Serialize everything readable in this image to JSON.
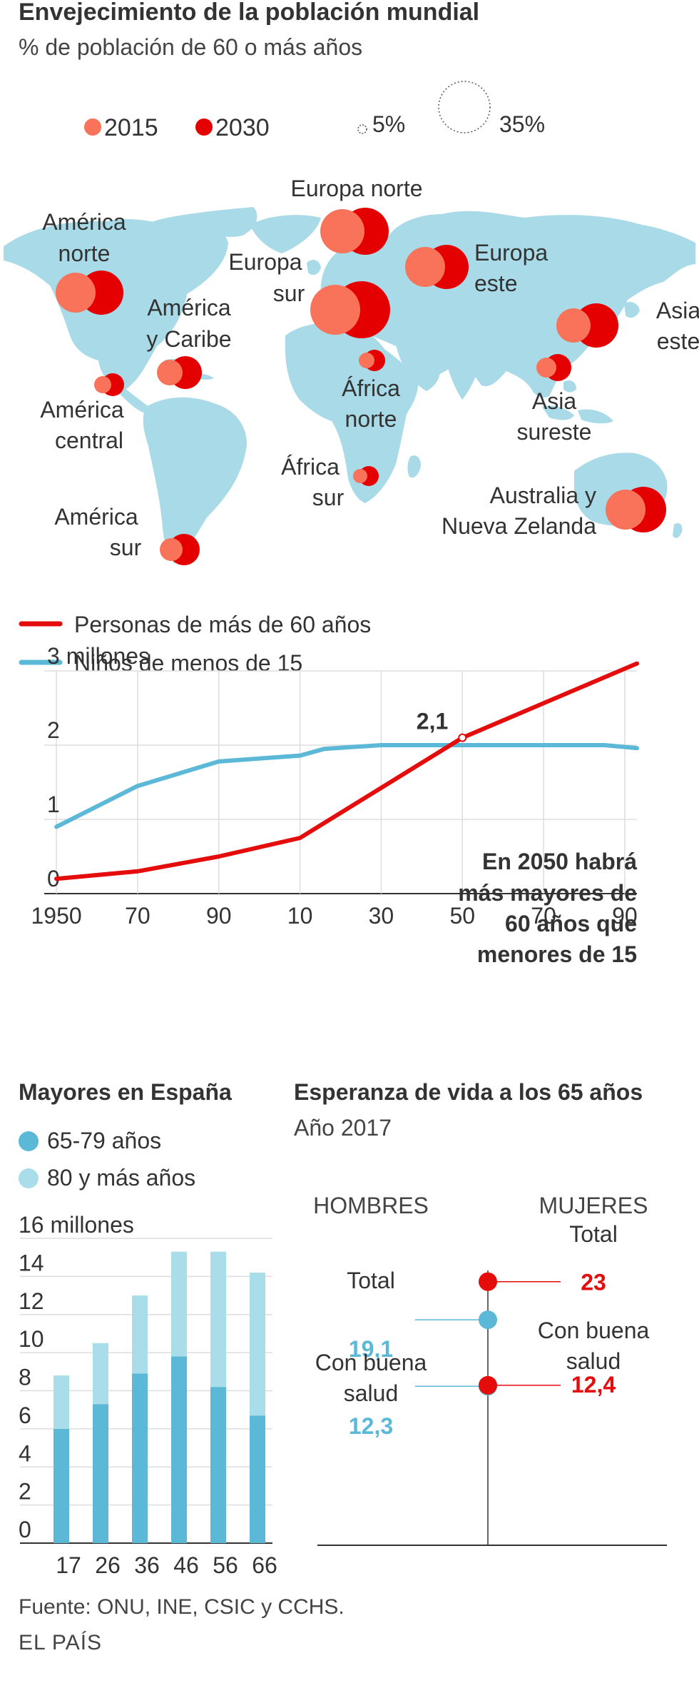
{
  "header": {
    "title": "Envejecimiento de la población mundial",
    "subtitle": "% de población de 60 o más años"
  },
  "colors": {
    "c2015": "#f87359",
    "c2030": "#e40000",
    "land": "#a8dae8",
    "red": "#e50c0c",
    "blue": "#5bb8d6",
    "blue_light": "#a9dde9",
    "grid": "#dddddd",
    "axis": "#333333"
  },
  "chart_data": [
    {
      "type": "bubble-map",
      "title": "Envejecimiento de la población mundial",
      "subtitle": "% de población de 60 o más años",
      "legend": {
        "series": [
          "2015",
          "2030"
        ],
        "size_min_label": "5%",
        "size_max_label": "35%",
        "size_min": 5,
        "size_max": 35
      },
      "regions": [
        {
          "name_lines": [
            "América",
            "norte"
          ],
          "v2015": 21,
          "v2030": 27
        },
        {
          "name_lines": [
            "América",
            "y Caribe"
          ],
          "v2015": 11,
          "v2030": 17
        },
        {
          "name_lines": [
            "América",
            "central"
          ],
          "v2015": 8,
          "v2030": 13
        },
        {
          "name_lines": [
            "América",
            "sur"
          ],
          "v2015": 11,
          "v2030": 17
        },
        {
          "name_lines": [
            "Europa norte"
          ],
          "v2015": 24,
          "v2030": 28
        },
        {
          "name_lines": [
            "Europa",
            "sur"
          ],
          "v2015": 27,
          "v2030": 34
        },
        {
          "name_lines": [
            "Europa",
            "este"
          ],
          "v2015": 23,
          "v2030": 28
        },
        {
          "name_lines": [
            "África",
            "norte"
          ],
          "v2015": 7,
          "v2030": 11
        },
        {
          "name_lines": [
            "África",
            "sur"
          ],
          "v2015": 7,
          "v2030": 10
        },
        {
          "name_lines": [
            "Asia",
            "este"
          ],
          "v2015": 18,
          "v2030": 27
        },
        {
          "name_lines": [
            "Asia",
            "sureste"
          ],
          "v2015": 10,
          "v2030": 15
        },
        {
          "name_lines": [
            "Australia y",
            "Nueva Zelanda"
          ],
          "v2015": 20,
          "v2030": 25
        }
      ]
    },
    {
      "type": "line",
      "legend": [
        "Personas de más de 60 años",
        "Niños de menos de 15"
      ],
      "x_tick_labels": [
        "1950",
        "70",
        "90",
        "10",
        "30",
        "50",
        "70",
        "90"
      ],
      "x_ticks": [
        1950,
        1970,
        1990,
        2010,
        2030,
        2050,
        2070,
        2090
      ],
      "xlim": [
        1947,
        2093
      ],
      "ylim": [
        0,
        3
      ],
      "y_tick_labels": [
        "0",
        "1",
        "2",
        "3 millones"
      ],
      "y_ticks": [
        0,
        1,
        2,
        3
      ],
      "series": [
        {
          "name": "Personas de más de 60 años",
          "x": [
            1950,
            1970,
            1990,
            2010,
            2050,
            2093
          ],
          "values": [
            0.2,
            0.3,
            0.5,
            0.75,
            2.1,
            3.1
          ]
        },
        {
          "name": "Niños de menos de 15",
          "x": [
            1950,
            1970,
            1990,
            2010,
            2016,
            2030,
            2050,
            2085,
            2093
          ],
          "values": [
            0.9,
            1.45,
            1.78,
            1.86,
            1.95,
            2.0,
            2.0,
            2.0,
            1.96
          ]
        }
      ],
      "annotations": {
        "point_label": "2,1",
        "point_x": 2050,
        "point_y": 2.1,
        "text_lines": [
          "En 2050 habrá",
          "más mayores de",
          "60 años que",
          "menores de 15"
        ]
      }
    },
    {
      "type": "bar",
      "stacked": true,
      "title": "Mayores en España",
      "legend": [
        "65-79 años",
        "80 y más años"
      ],
      "categories": [
        "17",
        "26",
        "36",
        "46",
        "56",
        "66"
      ],
      "series": [
        {
          "name": "65-79 años",
          "values": [
            6.0,
            7.3,
            8.9,
            9.8,
            8.2,
            6.7
          ]
        },
        {
          "name": "80 y más años",
          "values": [
            2.8,
            3.2,
            4.1,
            5.5,
            7.1,
            7.5
          ]
        }
      ],
      "ylim": [
        0,
        16
      ],
      "y_tick_labels": [
        "0",
        "2",
        "4",
        "6",
        "8",
        "10",
        "12",
        "14",
        "16 millones"
      ],
      "y_ticks": [
        0,
        2,
        4,
        6,
        8,
        10,
        12,
        14,
        16
      ]
    },
    {
      "type": "dot",
      "title": "Esperanza de vida a los 65 años",
      "subtitle": "Año 2017",
      "headers": {
        "men": "HOMBRES",
        "women": "MUJERES"
      },
      "domain": [
        11,
        24
      ],
      "points": [
        {
          "group": "MUJERES",
          "label_lines": [
            "Total"
          ],
          "value": 23,
          "value_label": "23"
        },
        {
          "group": "HOMBRES",
          "label_lines": [
            "Total"
          ],
          "value": 19.1,
          "value_label": "19,1"
        },
        {
          "group": "MUJERES",
          "label_lines": [
            "Con buena",
            "salud"
          ],
          "value": 12.4,
          "value_label": "12,4"
        },
        {
          "group": "HOMBRES",
          "label_lines": [
            "Con buena",
            "salud"
          ],
          "value": 12.3,
          "value_label": "12,3"
        }
      ]
    }
  ],
  "footer": {
    "source": "Fuente: ONU, INE, CSIC y CCHS.",
    "brand": "EL PAÍS"
  }
}
